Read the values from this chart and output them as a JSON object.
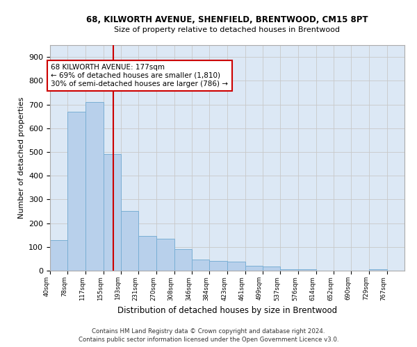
{
  "title1": "68, KILWORTH AVENUE, SHENFIELD, BRENTWOOD, CM15 8PT",
  "title2": "Size of property relative to detached houses in Brentwood",
  "xlabel": "Distribution of detached houses by size in Brentwood",
  "ylabel": "Number of detached properties",
  "bar_edges": [
    40,
    78,
    117,
    155,
    193,
    231,
    270,
    308,
    346,
    384,
    423,
    461,
    499,
    537,
    576,
    614,
    652,
    690,
    729,
    767,
    805
  ],
  "bar_heights": [
    130,
    670,
    710,
    490,
    250,
    145,
    135,
    90,
    48,
    40,
    38,
    20,
    18,
    5,
    5,
    0,
    0,
    0,
    5,
    0,
    0
  ],
  "bar_color": "#b8d0eb",
  "bar_edgecolor": "#7aafd4",
  "vline_x": 177,
  "vline_color": "#cc0000",
  "annotation_line1": "68 KILWORTH AVENUE: 177sqm",
  "annotation_line2": "← 69% of detached houses are smaller (1,810)",
  "annotation_line3": "30% of semi-detached houses are larger (786) →",
  "annotation_box_color": "#cc0000",
  "ylim": [
    0,
    950
  ],
  "yticks": [
    0,
    100,
    200,
    300,
    400,
    500,
    600,
    700,
    800,
    900
  ],
  "grid_color": "#c8c8c8",
  "bg_color": "#dce8f5",
  "footer1": "Contains HM Land Registry data © Crown copyright and database right 2024.",
  "footer2": "Contains public sector information licensed under the Open Government Licence v3.0."
}
